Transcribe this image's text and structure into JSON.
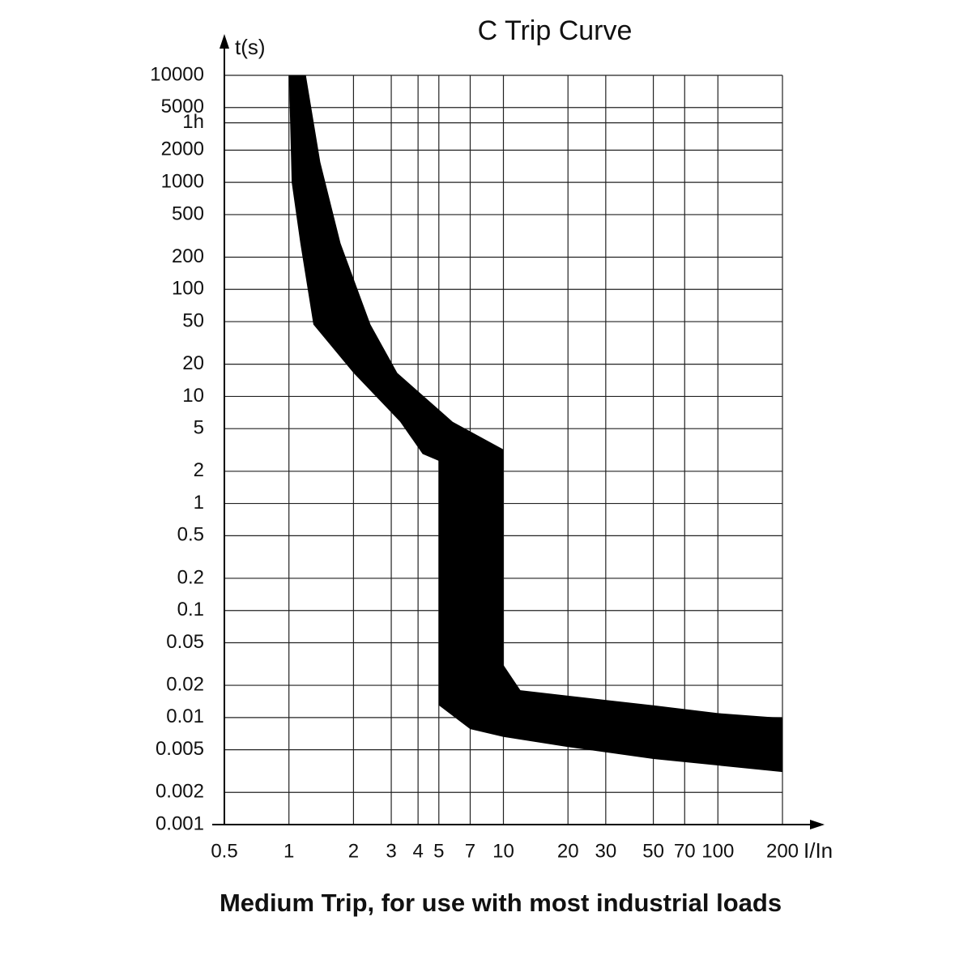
{
  "chart_data": {
    "type": "band",
    "title": "C Trip Curve",
    "y_label": "t(s)",
    "x_label": "I/In",
    "caption": "Medium Trip, for use with most industrial loads",
    "log_x": true,
    "log_y": true,
    "grid": true,
    "color": "#000000",
    "xlim": [
      0.5,
      200
    ],
    "ylim": [
      0.001,
      10000
    ],
    "xticks": [
      0.5,
      1,
      2,
      3,
      4,
      5,
      7,
      10,
      20,
      30,
      50,
      70,
      100,
      200
    ],
    "yticks": [
      10000,
      5000,
      {
        "value": 3600,
        "label": "1h"
      },
      2000,
      1000,
      500,
      200,
      100,
      50,
      20,
      10,
      5,
      2,
      1,
      0.5,
      0.2,
      0.1,
      0.05,
      0.02,
      0.01,
      0.005,
      0.002,
      0.001
    ],
    "upper": {
      "x": [
        1.2,
        1.4,
        1.74,
        2.4,
        3.2,
        5.8,
        10,
        10,
        12,
        20,
        50,
        100,
        200
      ],
      "t": [
        10000,
        1550,
        270,
        47,
        16.6,
        5.8,
        3.2,
        0.031,
        0.018,
        0.016,
        0.013,
        0.011,
        0.0099
      ]
    },
    "lower": {
      "x": [
        1.0,
        1.03,
        1.13,
        1.3,
        2,
        3.3,
        4.2,
        5,
        5,
        7,
        10,
        20,
        50,
        200
      ],
      "t": [
        10000,
        1000,
        270,
        47,
        16.6,
        5.8,
        2.9,
        2.5,
        0.013,
        0.0078,
        0.0066,
        0.0053,
        0.0041,
        0.0031
      ]
    }
  }
}
